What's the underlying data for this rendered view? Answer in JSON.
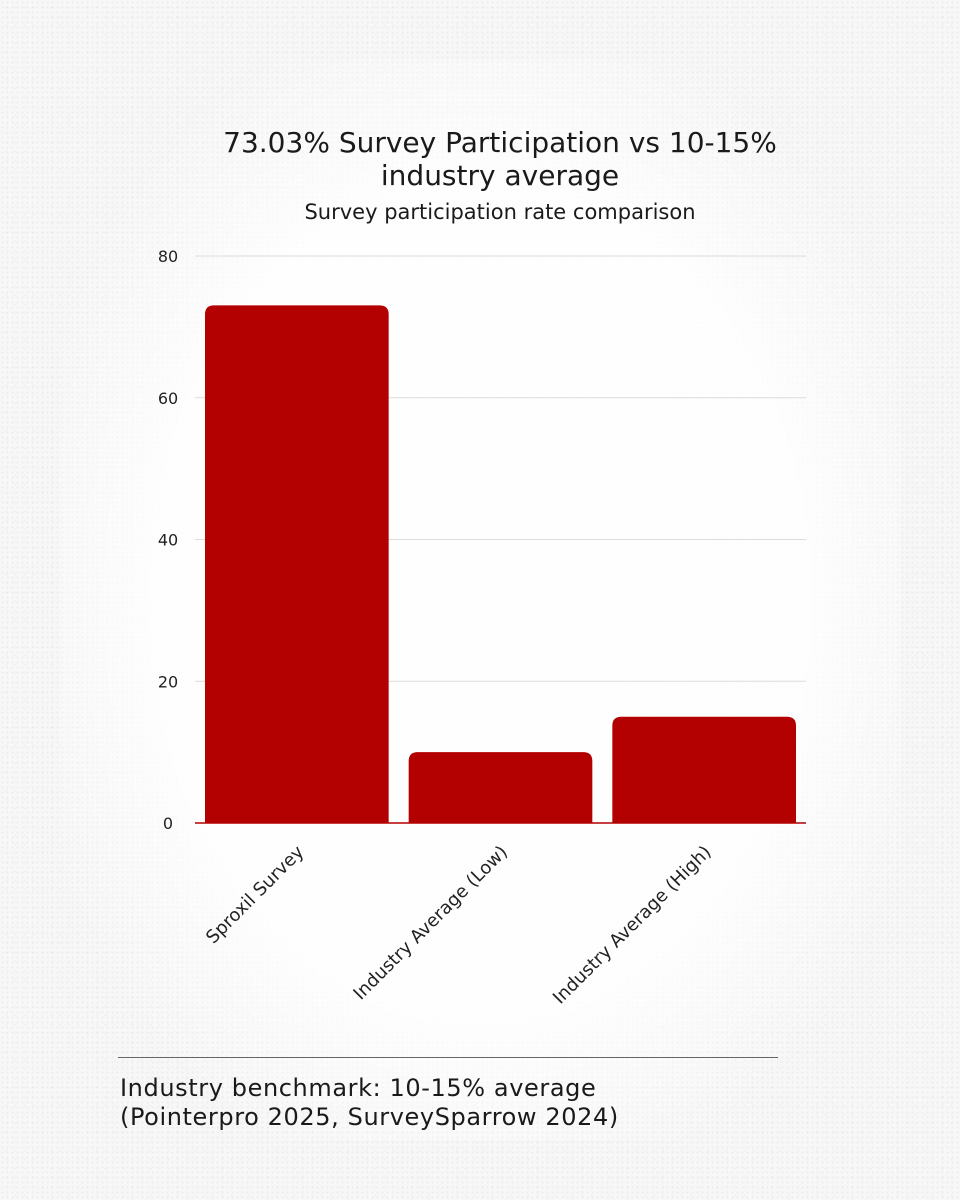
{
  "chart_data": {
    "type": "bar",
    "title": "73.03% Survey Participation vs 10-15% industry average",
    "subtitle": "Survey participation rate comparison",
    "categories": [
      "Sproxil Survey",
      "Industry Average (Low)",
      "Industry Average (High)"
    ],
    "values": [
      73.03,
      10,
      15
    ],
    "ylim": [
      0,
      80
    ],
    "yticks": [
      0,
      20,
      40,
      60,
      80
    ],
    "grid": true,
    "legend": "none",
    "bar_color": "#b30000"
  },
  "footer": {
    "line1": "Industry benchmark: 10-15% average",
    "line2": "(Pointerpro 2025, SurveySparrow 2024)"
  }
}
